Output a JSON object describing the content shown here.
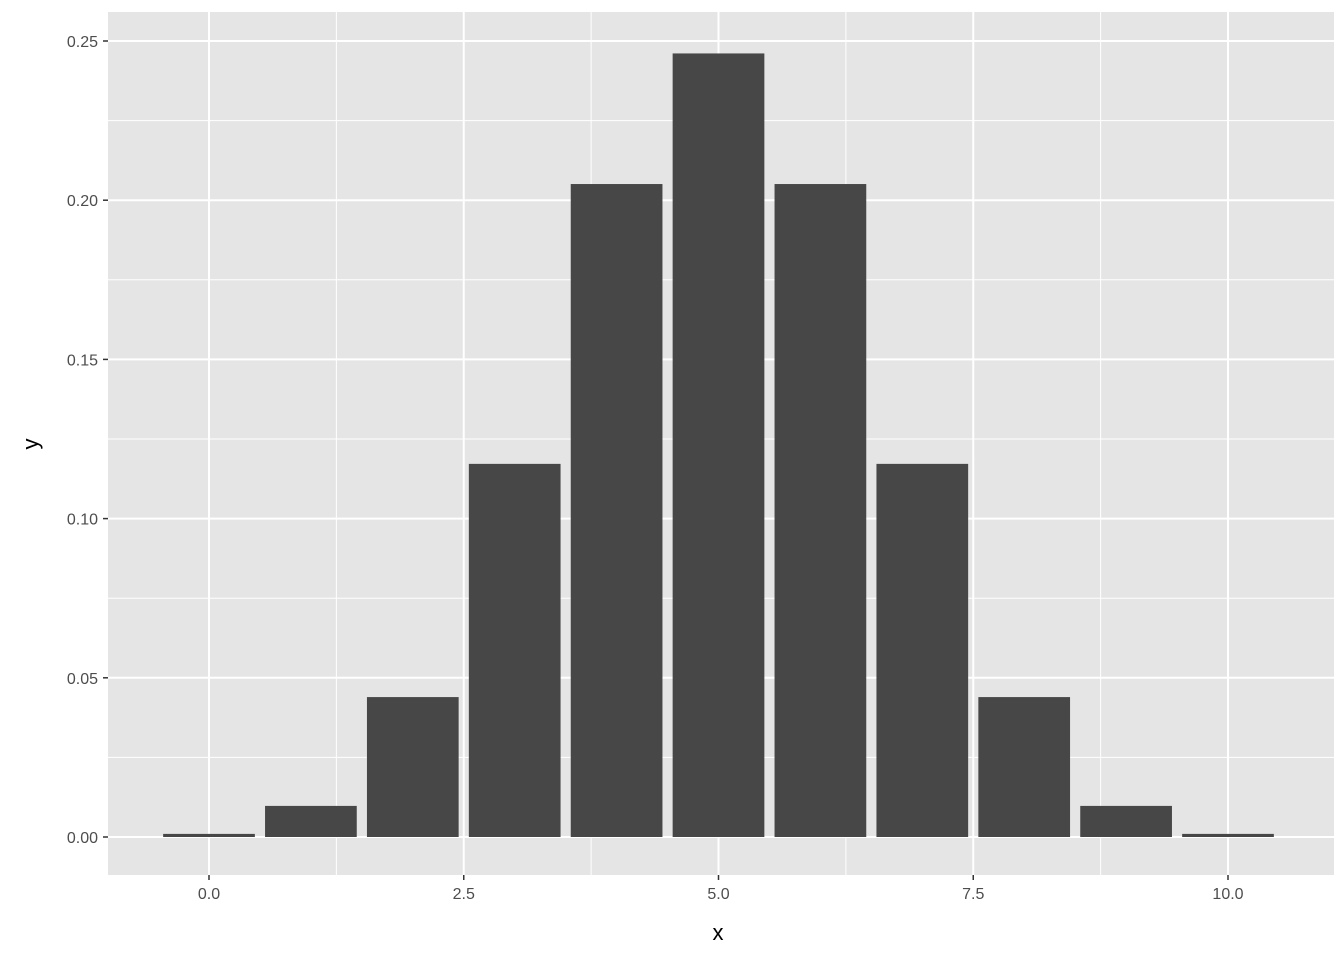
{
  "chart_data": {
    "type": "bar",
    "title": "",
    "xlabel": "x",
    "ylabel": "y",
    "x": [
      0,
      1,
      2,
      3,
      4,
      5,
      6,
      7,
      8,
      9,
      10
    ],
    "values": [
      0.000977,
      0.009766,
      0.043945,
      0.117188,
      0.205078,
      0.246094,
      0.205078,
      0.117188,
      0.043945,
      0.009766,
      0.000977
    ],
    "xlim": [
      -0.5,
      10.5
    ],
    "ylim": [
      0,
      0.25
    ],
    "x_ticks": [
      0,
      2.5,
      5,
      7.5,
      10
    ],
    "x_tick_labels": [
      "0.0",
      "2.5",
      "5.0",
      "7.5",
      "10.0"
    ],
    "y_ticks": [
      0,
      0.05,
      0.1,
      0.15,
      0.2,
      0.25
    ],
    "y_tick_labels": [
      "0.00",
      "0.05",
      "0.10",
      "0.15",
      "0.20",
      "0.25"
    ],
    "grid": true,
    "colors": {
      "bar": "#474747",
      "panel": "#e5e5e5",
      "grid": "#ffffff"
    }
  }
}
